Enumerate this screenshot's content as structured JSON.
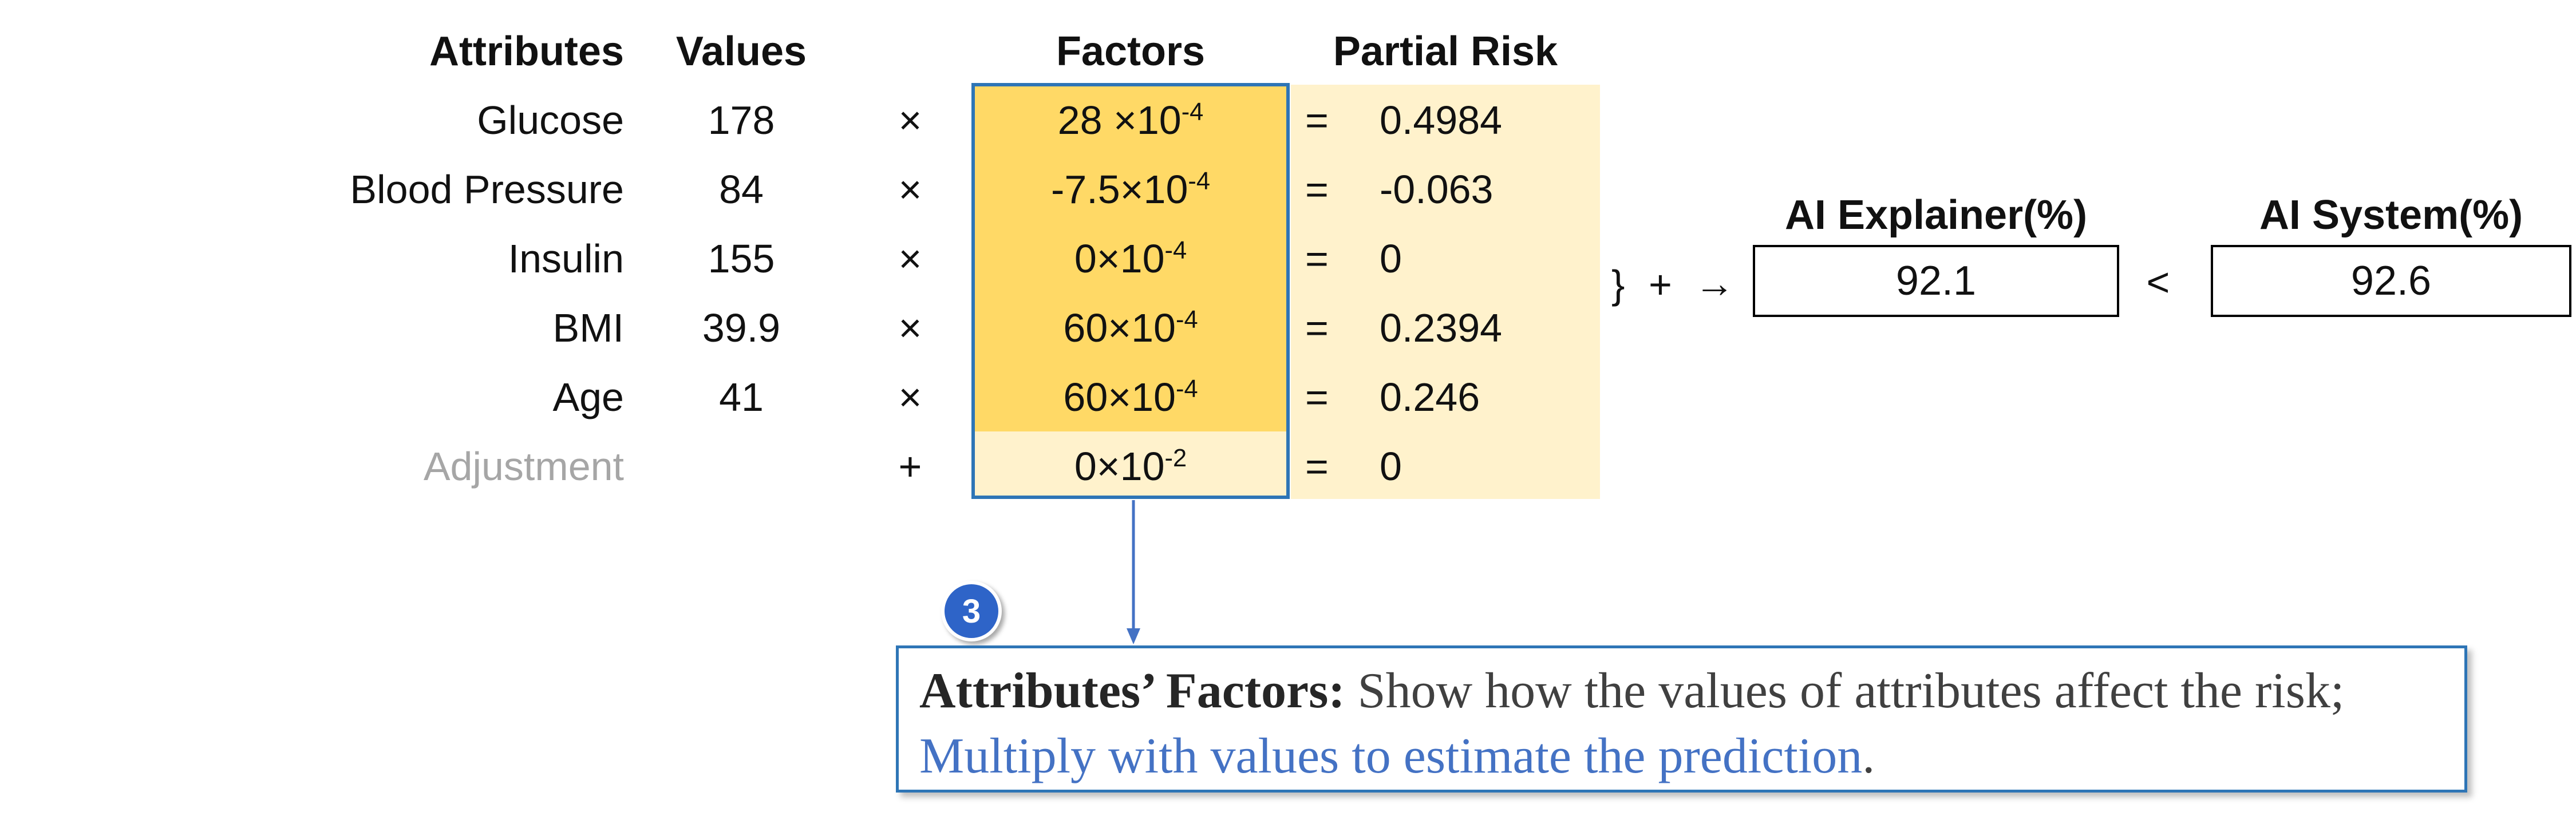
{
  "headers": {
    "attributes": "Attributes",
    "values": "Values",
    "factors": "Factors",
    "partial_risk": "Partial Risk"
  },
  "rows": [
    {
      "attribute": "Glucose",
      "value": "178",
      "op": "×",
      "factor_base": "28 ×10",
      "factor_exp": "-4",
      "eq": "=",
      "partial": "0.4984"
    },
    {
      "attribute": "Blood Pressure",
      "value": "84",
      "op": "×",
      "factor_base": "-7.5×10",
      "factor_exp": "-4",
      "eq": "=",
      "partial": "-0.063"
    },
    {
      "attribute": "Insulin",
      "value": "155",
      "op": "×",
      "factor_base": "0×10",
      "factor_exp": "-4",
      "eq": "=",
      "partial": "0"
    },
    {
      "attribute": "BMI",
      "value": "39.9",
      "op": "×",
      "factor_base": "60×10",
      "factor_exp": "-4",
      "eq": "=",
      "partial": "0.2394"
    },
    {
      "attribute": "Age",
      "value": "41",
      "op": "×",
      "factor_base": "60×10",
      "factor_exp": "-4",
      "eq": "=",
      "partial": "0.246"
    },
    {
      "attribute": "Adjustment",
      "value": "",
      "op": "+",
      "factor_base": "0×10",
      "factor_exp": "-2",
      "eq": "=",
      "partial": "0"
    }
  ],
  "sum_connector": {
    "brace": "}",
    "plus": "+",
    "arrow": "→"
  },
  "explainer": {
    "label": "AI Explainer(%)",
    "value": "92.1"
  },
  "comparison": "<",
  "system": {
    "label": "AI System(%)",
    "value": "92.6"
  },
  "colors": {
    "factor_frame": "#2e75b6",
    "factor_fill": "#ffd966",
    "partial_fill": "#fff2cc",
    "adjustment_text": "#a6a6a6",
    "callout_blue": "#4472c4"
  },
  "callout": {
    "badge": "3",
    "title": "Attributes’ Factors:",
    "text": " Show how the values of attributes affect the risk;",
    "highlight": "Multiply with values to estimate the prediction",
    "end": "."
  }
}
